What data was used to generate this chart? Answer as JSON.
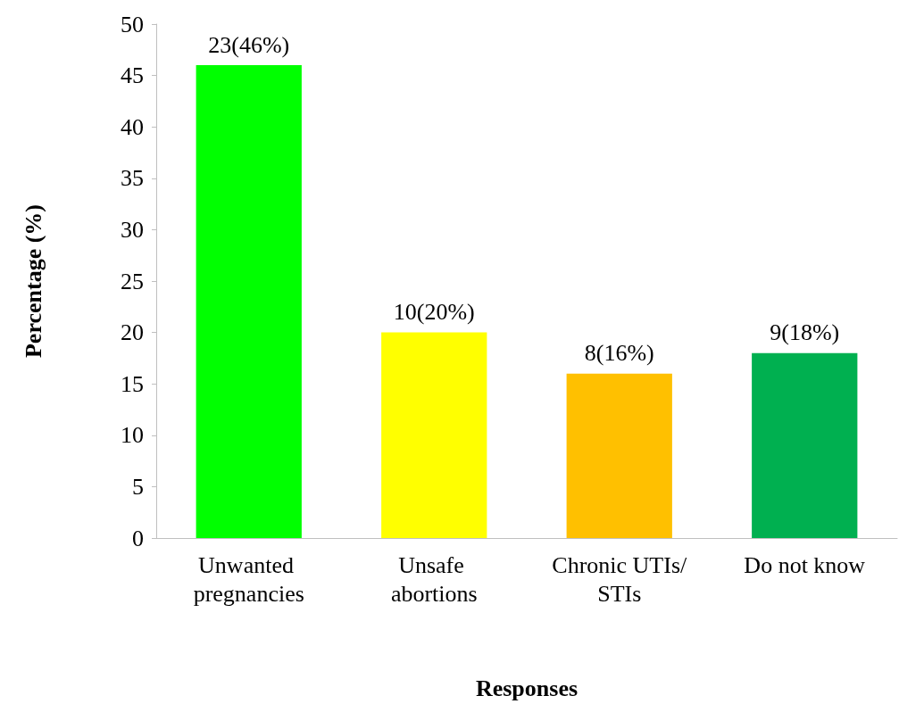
{
  "chart_data": {
    "type": "bar",
    "xlabel": "Responses",
    "ylabel": "Percentage (%)",
    "categories": [
      "Unwanted pregnancies",
      "Unsafe abortions",
      "Chronic UTIs/STIs",
      "Do not know"
    ],
    "values": [
      46,
      20,
      16,
      18
    ],
    "colors": [
      "#00ff00",
      "#ffff00",
      "#ffc000",
      "#00b050"
    ],
    "value_labels": [
      "23(46%)",
      "10(20%)",
      "8(16%)",
      "9(18%)"
    ],
    "ylim": [
      0,
      50
    ],
    "yticks": [
      0,
      5,
      10,
      15,
      20,
      25,
      30,
      35,
      40,
      45,
      50
    ],
    "grid": false
  }
}
